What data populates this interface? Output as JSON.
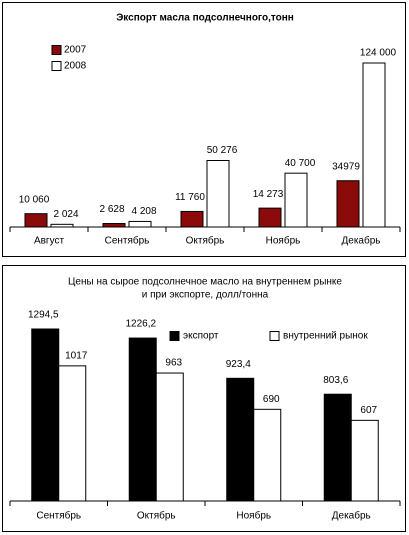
{
  "chart_data": [
    {
      "type": "bar",
      "title": [
        "Экспорт масла подсолнечного,тонн"
      ],
      "categories": [
        "Август",
        "Сентябрь",
        "Октябрь",
        "Ноябрь",
        "Декабрь"
      ],
      "series": [
        {
          "name": "2007",
          "color": "#8b0a0a",
          "values": [
            10060,
            2628,
            11760,
            14273,
            34979
          ],
          "value_labels": [
            "10 060",
            "2 628",
            "11 760",
            "14 273",
            "34979"
          ]
        },
        {
          "name": "2008",
          "color": "#ffffff",
          "values": [
            2024,
            4208,
            50276,
            40700,
            124000
          ],
          "value_labels": [
            "2 024",
            "4 208",
            "50 276",
            "40 700",
            "124 000"
          ]
        }
      ]
    },
    {
      "type": "bar",
      "title": [
        "Цены на сырое подсолнечное масло на внутреннем рынке",
        "и при экспорте, долл/тонна"
      ],
      "categories": [
        "Сентябрь",
        "Октябрь",
        "Ноябрь",
        "Декабрь"
      ],
      "series": [
        {
          "name": "экспорт",
          "color": "#000000",
          "values": [
            1294.5,
            1226.2,
            923.4,
            803.6
          ],
          "value_labels": [
            "1294,5",
            "1226,2",
            "923,4",
            "803,6"
          ]
        },
        {
          "name": "внутренний рынок",
          "color": "#ffffff",
          "values": [
            1017,
            963,
            690,
            607
          ]
        }
      ]
    }
  ]
}
